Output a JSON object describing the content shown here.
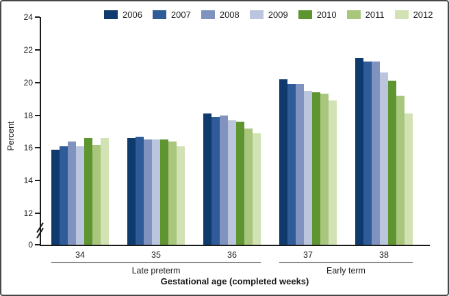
{
  "figure": {
    "y_axis_label": "Percent",
    "x_axis_label": "Gestational age (completed weeks)"
  },
  "chart_data": {
    "type": "bar",
    "title": "",
    "ylabel": "Percent",
    "xlabel": "Gestational age (completed weeks)",
    "legend_position": "top",
    "grid": false,
    "y_axis_break_between": [
      0,
      12
    ],
    "ylim_display": [
      12,
      24
    ],
    "yticks": [
      24,
      22,
      20,
      18,
      16,
      14,
      12,
      0
    ],
    "categories": [
      "34",
      "35",
      "36",
      "37",
      "38"
    ],
    "category_groups": [
      {
        "label": "Late preterm",
        "span": [
          "34",
          "36"
        ]
      },
      {
        "label": "Early term",
        "span": [
          "37",
          "38"
        ]
      }
    ],
    "series": [
      {
        "name": "2006",
        "color": "#0e3a6d",
        "values": [
          15.9,
          16.6,
          18.1,
          20.2,
          21.5
        ]
      },
      {
        "name": "2007",
        "color": "#2f5b98",
        "values": [
          16.1,
          16.7,
          17.9,
          19.9,
          21.3
        ]
      },
      {
        "name": "2008",
        "color": "#8093bf",
        "values": [
          16.4,
          16.5,
          18.0,
          19.9,
          21.3
        ]
      },
      {
        "name": "2009",
        "color": "#bcc5de",
        "values": [
          16.1,
          16.5,
          17.7,
          19.5,
          20.6
        ]
      },
      {
        "name": "2010",
        "color": "#5f9530",
        "values": [
          16.6,
          16.5,
          17.6,
          19.4,
          20.1
        ]
      },
      {
        "name": "2011",
        "color": "#a9c67d",
        "values": [
          16.2,
          16.4,
          17.2,
          19.3,
          19.2
        ]
      },
      {
        "name": "2012",
        "color": "#d2e2b4",
        "values": [
          16.6,
          16.1,
          16.9,
          18.9,
          18.1
        ]
      }
    ],
    "axis_color": "#1a1a1a",
    "bracket_color": "#8c8c8c"
  }
}
